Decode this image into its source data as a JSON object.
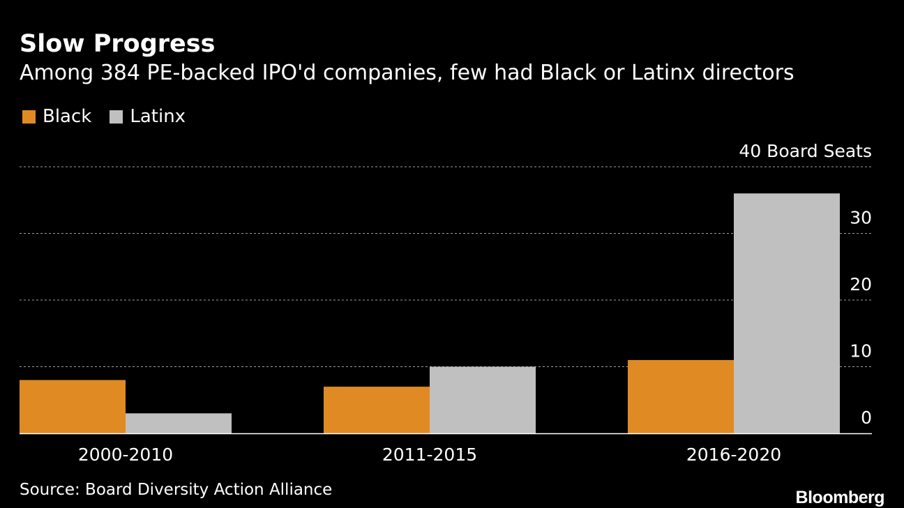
{
  "chart_data": {
    "type": "bar",
    "title": "Slow Progress",
    "subtitle": "Among 384 PE-backed IPO'd companies, few had Black or Latinx directors",
    "categories": [
      "2000-2010",
      "2011-2015",
      "2016-2020"
    ],
    "series": [
      {
        "name": "Black",
        "values": [
          8,
          7,
          11
        ],
        "color": "#e08a24"
      },
      {
        "name": "Latinx",
        "values": [
          3,
          10,
          36
        ],
        "color": "#c0c0c0"
      }
    ],
    "ylim": [
      0,
      40
    ],
    "yticks": [
      0,
      10,
      20,
      30,
      40
    ],
    "ytick_labels": [
      "0",
      "10",
      "20",
      "30",
      "40 Board Seats"
    ],
    "ylabel": "Board Seats",
    "xlabel": "",
    "grid": true,
    "legend_position": "top-left",
    "source": "Source: Board Diversity Action Alliance",
    "brand": "Bloomberg"
  }
}
